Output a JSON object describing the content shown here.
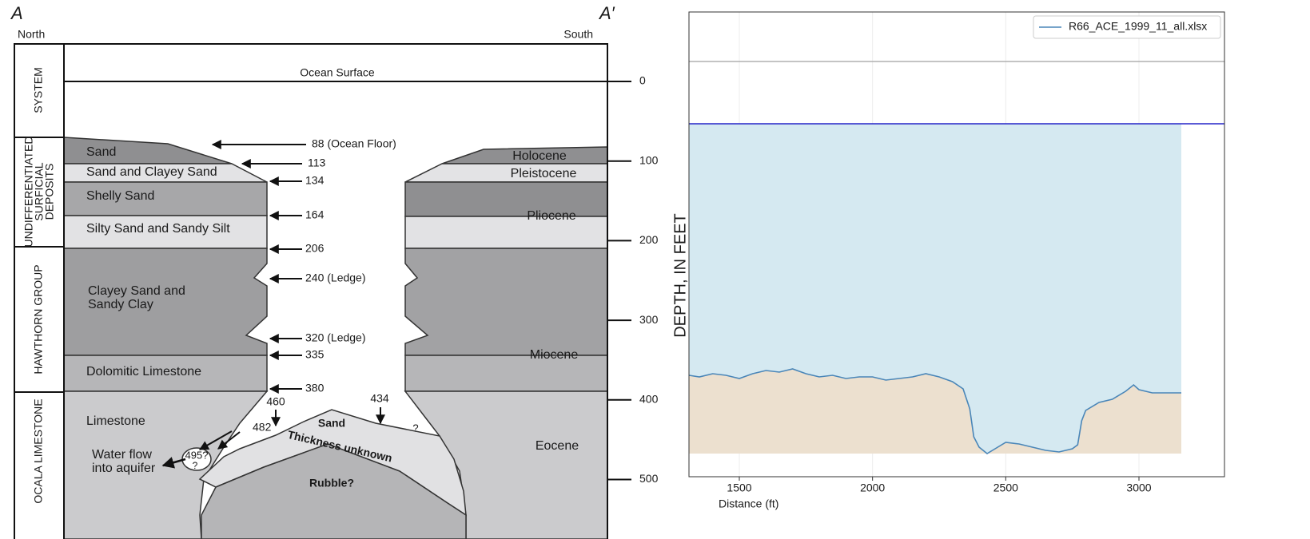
{
  "diagram": {
    "section_start": "A",
    "section_end": "A′",
    "left_direction": "North",
    "right_direction": "South",
    "systems": [
      {
        "lines": [
          "SYSTEM"
        ]
      },
      {
        "lines": [
          "UNDIFFERENTIATED",
          "SURFICIAL",
          "DEPOSITS"
        ]
      },
      {
        "lines": [
          "HAWTHORN GROUP"
        ]
      },
      {
        "lines": [
          "OCALA LIMESTONE"
        ]
      }
    ],
    "surface_label": "Ocean Surface",
    "left_layers": [
      {
        "lines": [
          "Sand"
        ]
      },
      {
        "lines": [
          "Sand and Clayey Sand"
        ]
      },
      {
        "lines": [
          "Shelly Sand"
        ]
      },
      {
        "lines": [
          "Silty Sand  and Sandy Silt"
        ]
      },
      {
        "lines": [
          "Clayey Sand and",
          "Sandy Clay"
        ]
      },
      {
        "lines": [
          "Dolomitic Limestone"
        ]
      },
      {
        "lines": [
          "Limestone"
        ]
      },
      {
        "lines": [
          "Water flow",
          "into aquifer"
        ]
      }
    ],
    "right_layers": [
      "Holocene",
      "Pleistocene",
      "Pliocene",
      "Miocene",
      "Eocene"
    ],
    "depth_callouts": [
      "88  (Ocean Floor)",
      "113",
      "134",
      "164",
      "206",
      "240  (Ledge)",
      "320  (Ledge)",
      "335",
      "380",
      "460",
      "434",
      "482"
    ],
    "cavity_labels": [
      "Sand",
      "Thickness unknown",
      "Rubble?",
      "?",
      "495?",
      "?"
    ],
    "depth_scale_ticks": [
      0,
      100,
      200,
      300,
      400,
      500
    ]
  },
  "chart_data": {
    "type": "line",
    "y_label": "DEPTH, IN FEET",
    "x_label": "Distance (ft)",
    "x": [
      1311,
      1350,
      1400,
      1450,
      1500,
      1550,
      1600,
      1650,
      1700,
      1750,
      1800,
      1850,
      1900,
      1950,
      2000,
      2050,
      2100,
      2150,
      2200,
      2250,
      2300,
      2340,
      2365,
      2380,
      2400,
      2430,
      2460,
      2500,
      2550,
      2600,
      2650,
      2700,
      2750,
      2770,
      2785,
      2800,
      2850,
      2900,
      2950,
      2980,
      3000,
      3050,
      3100,
      3159
    ],
    "series": [
      {
        "name": "R66_ACE_1999_11_all.xlsx",
        "color": "#4a86b8",
        "values": [
          368,
          370,
          366,
          368,
          372,
          366,
          362,
          364,
          360,
          366,
          370,
          368,
          372,
          370,
          370,
          374,
          372,
          370,
          366,
          370,
          376,
          385,
          410,
          445,
          458,
          466,
          460,
          452,
          454,
          458,
          462,
          464,
          460,
          455,
          425,
          412,
          402,
          398,
          388,
          380,
          386,
          390,
          390,
          390
        ]
      }
    ],
    "xlim": [
      1311,
      3321
    ],
    "ylim": [
      -87,
      495
    ],
    "invert_y": true,
    "xticks": [
      1500,
      2000,
      2500,
      3000
    ],
    "grid": true,
    "legend": "upper right",
    "reference_line": {
      "value": -25,
      "color": "#b0b0b0"
    },
    "water_line": {
      "value": 53,
      "color": "#2525c8"
    },
    "water_fill": "#d5e9f1",
    "ground_fill": "#ece0cf"
  }
}
